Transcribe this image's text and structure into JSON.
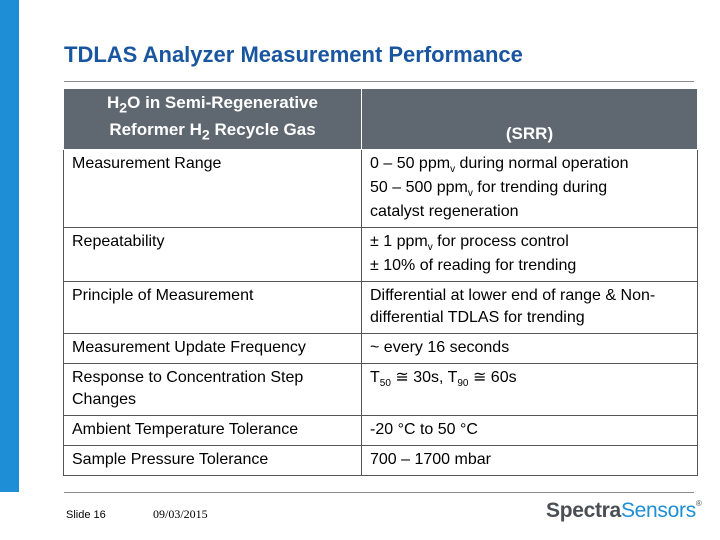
{
  "slide": {
    "title": "TDLAS Analyzer Measurement Performance",
    "number": "Slide 16",
    "date": "09/03/2015"
  },
  "table": {
    "header_col1": {
      "line1_pre": "H",
      "line1_sub": "2",
      "line1_post": "O in Semi-Regenerative",
      "line2_pre": "Reformer H",
      "line2_sub": "2",
      "line2_post": " Recycle Gas"
    },
    "header_col2": "(SRR)",
    "rows": [
      {
        "label": "Measurement Range",
        "lines": [
          {
            "pre": "0 – 50 ppm",
            "sub": "v",
            "post": " during normal operation"
          },
          {
            "pre": "50 – 500 ppm",
            "sub": "v",
            "post": " for trending during"
          },
          {
            "pre": "catalyst regeneration"
          }
        ]
      },
      {
        "label": "Repeatability",
        "lines": [
          {
            "pre": "± 1 ppm",
            "sub": "v",
            "post": " for process control"
          },
          {
            "pre": "± 10% of reading for trending"
          }
        ]
      },
      {
        "label": "Principle of Measurement",
        "lines": [
          {
            "pre": "Differential at lower end of range & Non-"
          },
          {
            "pre": "differential TDLAS for trending"
          }
        ]
      },
      {
        "label": "Measurement Update Frequency",
        "lines": [
          {
            "pre": "~ every 16 seconds"
          }
        ]
      },
      {
        "label_lines": [
          "Response to Concentration Step",
          "Changes"
        ],
        "lines": [
          {
            "pre": "T",
            "sub": "50",
            "post": " ≅ 30s, T",
            "sub2": "90",
            "post2": " ≅ 60s"
          }
        ]
      },
      {
        "label": "Ambient Temperature Tolerance",
        "lines": [
          {
            "pre": "-20 °C to 50 °C"
          }
        ]
      },
      {
        "label": "Sample Pressure Tolerance",
        "lines": [
          {
            "pre": "700 – 1700 mbar"
          }
        ]
      }
    ]
  },
  "logo": {
    "part1": "Spectra",
    "part2": "Sensors",
    "mark": "®"
  },
  "colors": {
    "title": "#1a55a0",
    "accent_bar": "#1e8fd6",
    "header_bg": "#5f6771"
  }
}
